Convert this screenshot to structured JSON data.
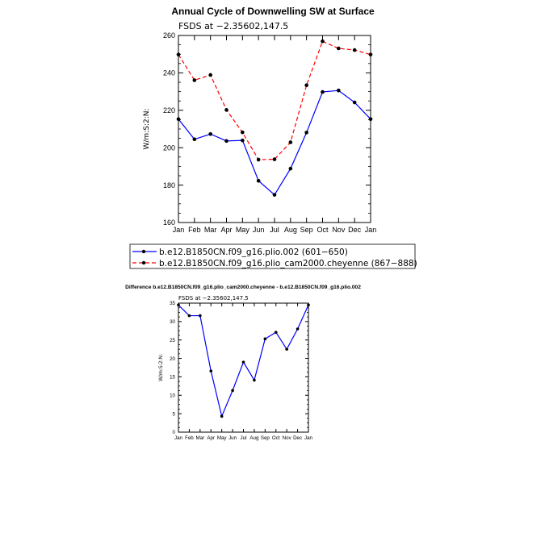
{
  "chart_data": [
    {
      "type": "line",
      "title": "Annual Cycle of Downwelling SW at Surface",
      "subtitle": "FSDS at −2.35602,147.5",
      "ylabel": "W/m:S:2:N:",
      "xlabel": "",
      "categories": [
        "Jan",
        "Feb",
        "Mar",
        "Apr",
        "May",
        "Jun",
        "Jul",
        "Aug",
        "Sep",
        "Oct",
        "Nov",
        "Dec",
        "Jan"
      ],
      "ylim": [
        160,
        260
      ],
      "yticks": [
        160,
        180,
        200,
        220,
        240,
        260
      ],
      "grid": false,
      "legend_position": "bottom",
      "series": [
        {
          "name": "b.e12.B1850CN.f09_g16.plio.002 (601−650)",
          "color": "#0000ff",
          "dash": "solid",
          "values": [
            215.3,
            204.5,
            207.3,
            203.6,
            203.9,
            182.3,
            174.8,
            188.8,
            208.1,
            229.8,
            230.6,
            224.2,
            215.3
          ]
        },
        {
          "name": "b.e12.B1850CN.f09_g16.plio_cam2000.cheyenne (867−888)",
          "color": "#ff0000",
          "dash": "dashed",
          "values": [
            249.8,
            236.1,
            238.9,
            220.2,
            208.2,
            193.6,
            193.8,
            202.9,
            233.4,
            256.9,
            253.1,
            252.2,
            249.8
          ]
        }
      ]
    },
    {
      "type": "line",
      "title": "Difference b.e12.B1850CN.f09_g16.plio_cam2000.cheyenne - b.e12.B1850CN.f09_g16.plio.002",
      "subtitle": "FSDS at −2.35602,147.5",
      "ylabel": "W/m:S:2:N:",
      "xlabel": "",
      "categories": [
        "Jan",
        "Feb",
        "Mar",
        "Apr",
        "May",
        "Jun",
        "Jul",
        "Aug",
        "Sep",
        "Oct",
        "Nov",
        "Dec",
        "Jan"
      ],
      "ylim": [
        0,
        35
      ],
      "yticks": [
        0,
        5,
        10,
        15,
        20,
        25,
        30,
        35
      ],
      "grid": false,
      "series": [
        {
          "color": "#0000ff",
          "dash": "solid",
          "values": [
            34.5,
            31.6,
            31.6,
            16.6,
            4.3,
            11.3,
            19.0,
            14.1,
            25.3,
            27.1,
            22.5,
            28.0,
            34.5
          ]
        }
      ]
    }
  ]
}
